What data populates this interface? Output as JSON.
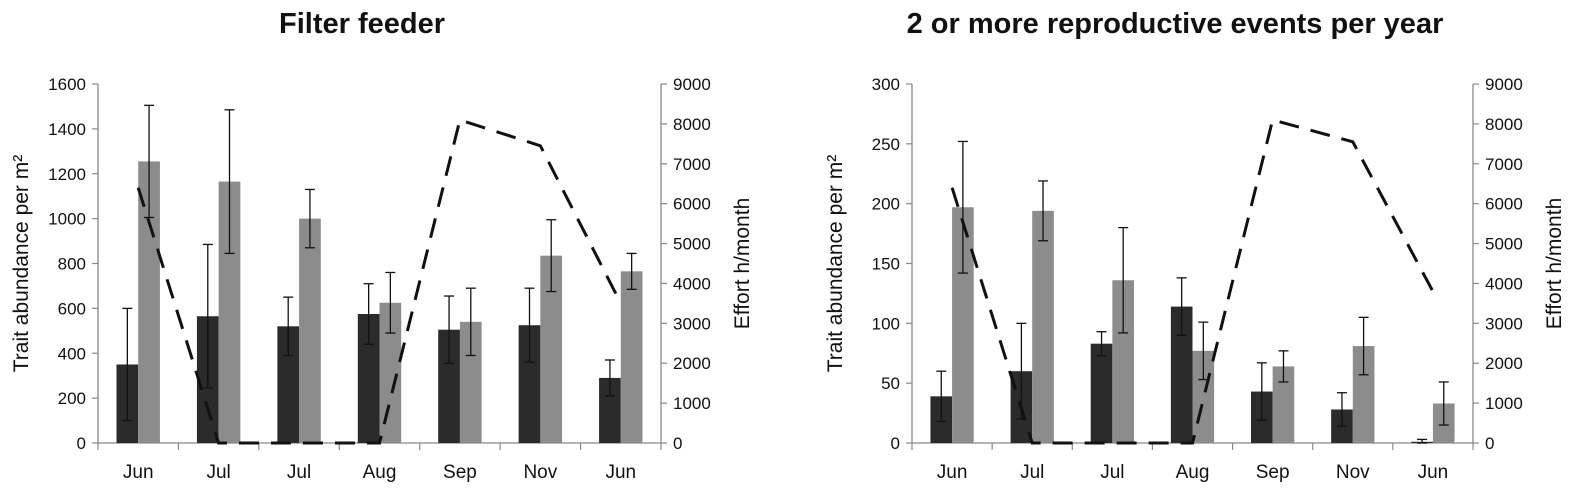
{
  "chart_data": [
    {
      "type": "bar",
      "title": "Filter feeder",
      "ylabel": "Trait abundance per m²",
      "y2label": "Effort h/month",
      "categories": [
        "Jun",
        "Jul",
        "Jul",
        "Aug",
        "Sep",
        "Nov",
        "Jun"
      ],
      "ylim": [
        0,
        1600
      ],
      "yticks": [
        0,
        200,
        400,
        600,
        800,
        1000,
        1200,
        1400,
        1600
      ],
      "y2lim": [
        0,
        9000
      ],
      "y2ticks": [
        0,
        1000,
        2000,
        3000,
        4000,
        5000,
        6000,
        7000,
        8000,
        9000
      ],
      "series": [
        {
          "color": "#2b2b2b",
          "values": [
            350,
            565,
            520,
            575,
            505,
            525,
            290
          ],
          "errors": [
            250,
            320,
            130,
            135,
            150,
            165,
            80
          ]
        },
        {
          "color": "#8c8c8c",
          "values": [
            1255,
            1165,
            1000,
            625,
            540,
            835,
            765
          ],
          "errors": [
            250,
            320,
            130,
            135,
            150,
            160,
            80
          ]
        }
      ],
      "effort_line": {
        "style": "dashed",
        "color": "#111111",
        "values": [
          6400,
          0,
          0,
          0,
          8100,
          7450,
          3500
        ]
      }
    },
    {
      "type": "bar",
      "title": "2 or more reproductive events per year",
      "ylabel": "Trait abundance per m²",
      "y2label": "Effort h/month",
      "categories": [
        "Jun",
        "Jul",
        "Jul",
        "Aug",
        "Sep",
        "Nov",
        "Jun"
      ],
      "ylim": [
        0,
        300
      ],
      "yticks": [
        0,
        50,
        100,
        150,
        200,
        250,
        300
      ],
      "y2lim": [
        0,
        9000
      ],
      "y2ticks": [
        0,
        1000,
        2000,
        3000,
        4000,
        5000,
        6000,
        7000,
        8000,
        9000
      ],
      "series": [
        {
          "color": "#2b2b2b",
          "values": [
            39,
            60,
            83,
            114,
            43,
            28,
            1
          ],
          "errors": [
            21,
            40,
            10,
            24,
            24,
            14,
            2
          ]
        },
        {
          "color": "#8c8c8c",
          "values": [
            197,
            194,
            136,
            77,
            64,
            81,
            33
          ],
          "errors": [
            55,
            25,
            44,
            24,
            13,
            24,
            18
          ]
        }
      ],
      "effort_line": {
        "style": "dashed",
        "color": "#111111",
        "values": [
          6400,
          0,
          0,
          0,
          8100,
          7550,
          3800
        ]
      }
    }
  ]
}
